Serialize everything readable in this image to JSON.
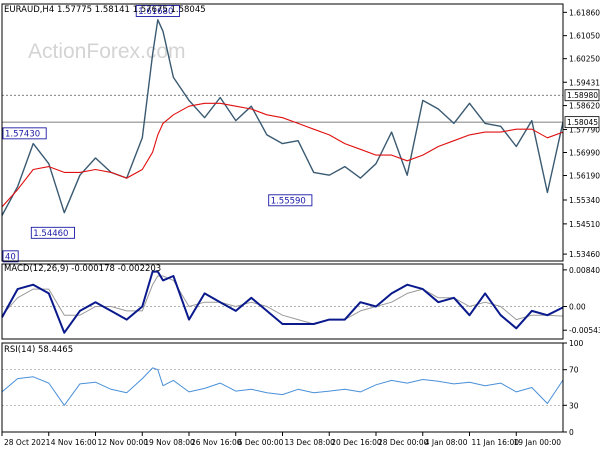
{
  "header": {
    "main": "EURAUD,H4  1.57775 1.58141 1.57675 1.58045",
    "macd": "MACD(12,26,9) -0.000178 -0.002203",
    "rsi": "RSI(14) 58.4465"
  },
  "watermark": "ActionForex.com",
  "colors": {
    "price": "#3a5a72",
    "sma": "#e01010",
    "macd_line": "#0a1a8c",
    "macd_signal": "#9a9a9a",
    "rsi_line": "#4a90d8",
    "annotation": "#1a1aa6",
    "border": "#000000"
  },
  "chart_data": [
    {
      "type": "line",
      "name": "price",
      "ylim": [
        1.5322,
        1.6215
      ],
      "yticks": [
        "1.61860",
        "1.61050",
        "1.60250",
        "1.59431",
        "1.58620",
        "1.57790",
        "1.56990",
        "1.56190",
        "1.55340",
        "1.54510",
        "1.53460"
      ],
      "ytick_values": [
        1.6186,
        1.6105,
        1.6025,
        1.59431,
        1.5862,
        1.5779,
        1.5699,
        1.5619,
        1.5534,
        1.5451,
        1.5346
      ],
      "horizontal_levels": [
        1.5898,
        1.58045
      ],
      "price_labels": [
        "1.58980",
        "1.58045"
      ],
      "annotations": [
        {
          "label": "1.61680",
          "x": 30,
          "y": 1.6168
        },
        {
          "label": "1.57430",
          "x": 3.5,
          "y": 1.5743
        },
        {
          "label": "1.54460",
          "x": 9.8,
          "y": 1.5446
        },
        {
          "label": "1.55590",
          "x": 55.5,
          "y": 1.5559
        },
        {
          "label": "40",
          "x": 0.3,
          "y": 1.534
        }
      ],
      "x_tick_labels": [
        "28 Oct 2021",
        "4 Nov 16:00",
        "12 Nov 00:00",
        "19 Nov 08:00",
        "26 Nov 16:00",
        "6 Dec 00:00",
        "13 Dec 08:00",
        "20 Dec 16:00",
        "28 Dec 00:00",
        "4 Jan 08:00",
        "11 Jan 16:00",
        "19 Jan 00:00"
      ],
      "x_tick_index": [
        0,
        9,
        18,
        27,
        36,
        45,
        54,
        63,
        72,
        81,
        90,
        99
      ],
      "x": [
        0,
        3,
        6,
        9,
        12,
        15,
        18,
        21,
        24,
        27,
        29,
        30,
        31,
        33,
        36,
        39,
        42,
        45,
        48,
        51,
        54,
        57,
        60,
        63,
        66,
        69,
        72,
        75,
        78,
        81,
        84,
        87,
        90,
        93,
        96,
        99,
        102,
        105,
        108
      ],
      "series": [
        {
          "values": [
            1.548,
            1.558,
            1.573,
            1.566,
            1.549,
            1.562,
            1.568,
            1.563,
            1.561,
            1.575,
            1.604,
            1.616,
            1.612,
            1.596,
            1.588,
            1.582,
            1.589,
            1.581,
            1.586,
            1.576,
            1.573,
            1.574,
            1.563,
            1.562,
            1.565,
            1.561,
            1.566,
            1.577,
            1.562,
            1.588,
            1.585,
            1.58,
            1.587,
            1.58,
            1.579,
            1.572,
            1.581,
            1.556,
            1.5805
          ]
        },
        {
          "values": [
            1.551,
            1.557,
            1.564,
            1.565,
            1.563,
            1.563,
            1.564,
            1.563,
            1.561,
            1.564,
            1.57,
            1.576,
            1.58,
            1.583,
            1.586,
            1.587,
            1.587,
            1.586,
            1.585,
            1.583,
            1.582,
            1.58,
            1.578,
            1.576,
            1.573,
            1.571,
            1.569,
            1.569,
            1.567,
            1.569,
            1.572,
            1.574,
            1.576,
            1.577,
            1.577,
            1.578,
            1.578,
            1.575,
            1.577
          ]
        }
      ]
    },
    {
      "type": "line",
      "name": "MACD(12,26,9)",
      "ylim": [
        -0.00745,
        0.00975
      ],
      "yticks": [
        "0.008402",
        "0.00",
        "-0.005436"
      ],
      "ytick_values": [
        0.008402,
        0.0,
        -0.005436
      ],
      "x": [
        0,
        3,
        6,
        9,
        12,
        15,
        18,
        21,
        24,
        27,
        29,
        30,
        31,
        33,
        36,
        39,
        42,
        45,
        48,
        51,
        54,
        57,
        60,
        63,
        66,
        69,
        72,
        75,
        78,
        81,
        84,
        87,
        90,
        93,
        96,
        99,
        102,
        105,
        108
      ],
      "series": [
        {
          "values": [
            -0.0025,
            0.004,
            0.005,
            0.003,
            -0.006,
            -0.001,
            0.001,
            -0.001,
            -0.003,
            0.0,
            0.008,
            0.008,
            0.006,
            0.007,
            -0.003,
            0.003,
            0.001,
            -0.001,
            0.002,
            -0.001,
            -0.004,
            -0.004,
            -0.004,
            -0.003,
            -0.003,
            0.001,
            0.0,
            0.003,
            0.005,
            0.004,
            0.001,
            0.002,
            -0.002,
            0.003,
            -0.002,
            -0.005,
            -0.001,
            -0.002,
            -0.0002
          ]
        },
        {
          "values": [
            -0.002,
            0.002,
            0.004,
            0.004,
            -0.002,
            -0.002,
            0.0,
            0.0,
            -0.001,
            -0.001,
            0.005,
            0.007,
            0.007,
            0.006,
            0.0,
            0.001,
            0.001,
            0.0,
            0.001,
            0.0,
            -0.002,
            -0.003,
            -0.004,
            -0.003,
            -0.003,
            -0.001,
            0.0,
            0.001,
            0.003,
            0.004,
            0.002,
            0.002,
            0.0,
            0.001,
            0.0,
            -0.003,
            -0.002,
            -0.002,
            -0.0022
          ]
        }
      ]
    },
    {
      "type": "line",
      "name": "RSI(14)",
      "ylim": [
        0,
        100
      ],
      "yticks": [
        "100",
        "70",
        "30",
        "0"
      ],
      "ytick_values": [
        100,
        70,
        30,
        0
      ],
      "horizontal_levels": [
        70,
        30
      ],
      "x": [
        0,
        3,
        6,
        9,
        12,
        15,
        18,
        21,
        24,
        27,
        29,
        30,
        31,
        33,
        36,
        39,
        42,
        45,
        48,
        51,
        54,
        57,
        60,
        63,
        66,
        69,
        72,
        75,
        78,
        81,
        84,
        87,
        90,
        93,
        96,
        99,
        102,
        105,
        108
      ],
      "series": [
        {
          "values": [
            45,
            60,
            62,
            55,
            30,
            54,
            56,
            48,
            44,
            60,
            72,
            70,
            52,
            58,
            45,
            49,
            55,
            46,
            48,
            44,
            42,
            48,
            44,
            46,
            48,
            45,
            53,
            58,
            55,
            59,
            57,
            54,
            56,
            52,
            55,
            45,
            50,
            32,
            58.4
          ]
        }
      ]
    }
  ]
}
